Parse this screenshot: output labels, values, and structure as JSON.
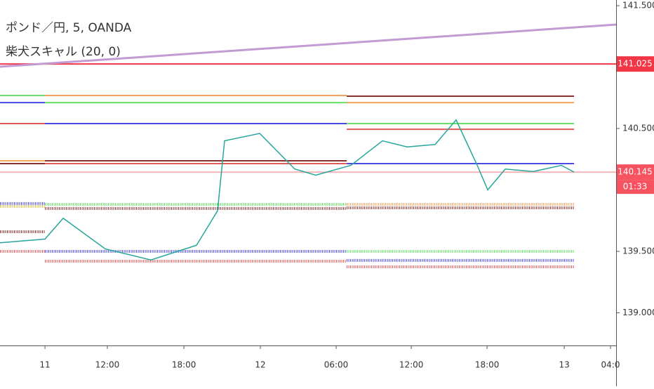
{
  "chart_data": {
    "type": "line",
    "title": "ポンド／円, 5, OANDA",
    "subtitle": "柴犬スキャル (20, 0)",
    "x": [
      0,
      3.53,
      4.96,
      8.26,
      11.85,
      15.43,
      17.08,
      17.63,
      20.39,
      23.14,
      24.79,
      27.55,
      30.03,
      31.96,
      34.16,
      35.81,
      37.47,
      38.29,
      39.67,
      41.87,
      44.08,
      45.07
    ],
    "values": [
      139.57,
      139.6,
      139.77,
      139.52,
      139.43,
      139.55,
      139.83,
      140.4,
      140.46,
      140.17,
      140.12,
      140.2,
      140.4,
      140.35,
      140.37,
      140.57,
      140.2,
      140.0,
      140.17,
      140.15,
      140.2,
      140.145
    ],
    "color": "#26a69a",
    "xlim": [
      0,
      48.37
    ],
    "ylim": [
      138.734,
      141.546
    ],
    "yticks": [
      {
        "value": 139,
        "label": "139.000"
      },
      {
        "value": 139.5,
        "label": "139.500"
      },
      {
        "value": 140.5,
        "label": "140.500"
      },
      {
        "value": 141.5,
        "label": "141.500"
      }
    ],
    "xticks": [
      {
        "value": 3.53,
        "label": "11"
      },
      {
        "value": 8.43,
        "label": "12:00"
      },
      {
        "value": 14.44,
        "label": "18:00"
      },
      {
        "value": 20.44,
        "label": "12"
      },
      {
        "value": 26.39,
        "label": "06:00"
      },
      {
        "value": 32.29,
        "label": "12:00"
      },
      {
        "value": 38.24,
        "label": "18:00"
      },
      {
        "value": 44.3,
        "label": "13"
      },
      {
        "value": 47.93,
        "label": "04:0"
      }
    ],
    "trend": {
      "x": [
        0,
        48.37
      ],
      "values": [
        141.003,
        141.346
      ],
      "color": "#c39bd3"
    },
    "levels": [
      {
        "value": 141.025,
        "x": [
          0,
          48.37
        ],
        "color": "#f23645",
        "dotted": false
      },
      {
        "value": 140.145,
        "x": [
          0,
          48.37
        ],
        "color": "#f7b5b9",
        "dotted": false
      },
      {
        "value": 140.769,
        "x": [
          0,
          3.53
        ],
        "color": "#66e066",
        "dotted": false
      },
      {
        "value": 140.711,
        "x": [
          0,
          3.53
        ],
        "color": "#4a4ae0",
        "dotted": false
      },
      {
        "value": 140.54,
        "x": [
          0,
          3.53
        ],
        "color": "#e05a5a",
        "dotted": false
      },
      {
        "value": 140.237,
        "x": [
          0,
          3.53
        ],
        "color": "#f5a35c",
        "dotted": false
      },
      {
        "value": 140.214,
        "x": [
          0,
          3.53
        ],
        "color": "#8b2e2e",
        "dotted": false
      },
      {
        "value": 140.769,
        "x": [
          3.53,
          27.22
        ],
        "color": "#f5a35c",
        "dotted": false
      },
      {
        "value": 140.711,
        "x": [
          3.53,
          27.22
        ],
        "color": "#66e066",
        "dotted": false
      },
      {
        "value": 140.54,
        "x": [
          3.53,
          27.22
        ],
        "color": "#4a4ae0",
        "dotted": false
      },
      {
        "value": 140.237,
        "x": [
          3.53,
          27.22
        ],
        "color": "#8b2e2e",
        "dotted": false
      },
      {
        "value": 140.214,
        "x": [
          3.53,
          27.22
        ],
        "color": "#e05a5a",
        "dotted": false
      },
      {
        "value": 140.763,
        "x": [
          27.22,
          45.07
        ],
        "color": "#8b2e2e",
        "dotted": false
      },
      {
        "value": 140.711,
        "x": [
          27.22,
          45.07
        ],
        "color": "#f5a35c",
        "dotted": false
      },
      {
        "value": 140.54,
        "x": [
          27.22,
          45.07
        ],
        "color": "#66e066",
        "dotted": false
      },
      {
        "value": 140.494,
        "x": [
          27.22,
          45.07
        ],
        "color": "#e05a5a",
        "dotted": false
      },
      {
        "value": 140.214,
        "x": [
          27.22,
          45.07
        ],
        "color": "#4a4ae0",
        "dotted": false
      },
      {
        "value": 139.889,
        "x": [
          0,
          3.53
        ],
        "color": "#4a4ae0",
        "dotted": true
      },
      {
        "value": 139.866,
        "x": [
          0,
          3.53
        ],
        "color": "#d4c44a",
        "dotted": true
      },
      {
        "value": 139.66,
        "x": [
          0,
          3.53
        ],
        "color": "#8b2e2e",
        "dotted": true
      },
      {
        "value": 139.5,
        "x": [
          0,
          3.53
        ],
        "color": "#e05a5a",
        "dotted": true
      },
      {
        "value": 139.883,
        "x": [
          3.53,
          27.22
        ],
        "color": "#66e066",
        "dotted": true
      },
      {
        "value": 139.849,
        "x": [
          3.53,
          27.22
        ],
        "color": "#8b2e2e",
        "dotted": true
      },
      {
        "value": 139.5,
        "x": [
          3.53,
          27.22
        ],
        "color": "#4a4ae0",
        "dotted": true
      },
      {
        "value": 139.42,
        "x": [
          3.53,
          27.22
        ],
        "color": "#e05a5a",
        "dotted": true
      },
      {
        "value": 139.883,
        "x": [
          27.22,
          45.07
        ],
        "color": "#f5a35c",
        "dotted": true
      },
      {
        "value": 139.854,
        "x": [
          27.22,
          45.07
        ],
        "color": "#8b2e2e",
        "dotted": true
      },
      {
        "value": 139.5,
        "x": [
          27.22,
          45.07
        ],
        "color": "#66e066",
        "dotted": true
      },
      {
        "value": 139.426,
        "x": [
          27.22,
          45.07
        ],
        "color": "#4a4ae0",
        "dotted": true
      },
      {
        "value": 139.374,
        "x": [
          27.22,
          45.07
        ],
        "color": "#e05a5a",
        "dotted": true
      }
    ],
    "price_labels": [
      {
        "value": 141.025,
        "label": "141.025",
        "color": "#f23645"
      },
      {
        "value": 140.145,
        "label": "140.145",
        "sublabel": "01:33",
        "color": "#f7525f"
      }
    ]
  }
}
